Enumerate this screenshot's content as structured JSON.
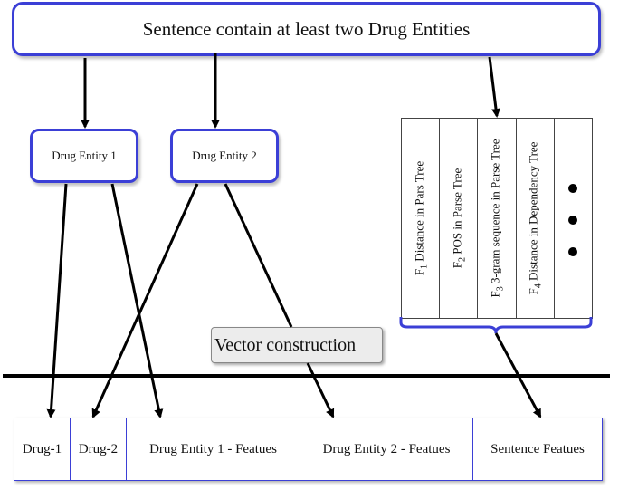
{
  "top": {
    "title": "Sentence contain at least two Drug Entities"
  },
  "entities": {
    "entity1": "Drug Entity 1",
    "entity2": "Drug Entity 2"
  },
  "features": {
    "f1": {
      "sub": "1",
      "text": " Distance in Pars Tree"
    },
    "f2": {
      "sub": "2",
      "text": " POS in Parse Tree"
    },
    "f3": {
      "sub": "3",
      "text": " 3-gram sequence in Parse Tree"
    },
    "f4": {
      "sub": "4",
      "text": " Distance in Dependency Tree"
    },
    "prefix": "F"
  },
  "vector_label": "Vector construction",
  "vector": {
    "cells": [
      "Drug-1",
      "Drug-2",
      "Drug Entity 1 - Featues",
      "Drug Entity 2 - Featues",
      "Sentence Featues"
    ]
  },
  "colors": {
    "box_border": "#3b3fd6",
    "arrow": "#000000",
    "label_bg": "#ececec"
  }
}
